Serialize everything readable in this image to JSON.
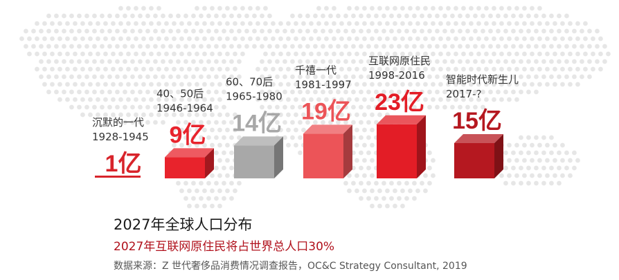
{
  "chart_data": {
    "type": "bar",
    "categories": [
      {
        "label": "沉默的一代",
        "years": "1928-1945"
      },
      {
        "label": "40、50后",
        "years": "1946-1964"
      },
      {
        "label": "60、70后",
        "years": "1965-1980"
      },
      {
        "label": "千禧一代",
        "years": "1981-1997"
      },
      {
        "label": "互联网原住民",
        "years": "1998-2016"
      },
      {
        "label": "智能时代新生儿",
        "years": "2017-?"
      }
    ],
    "values": [
      1,
      9,
      14,
      19,
      23,
      15
    ],
    "value_labels": [
      "1亿",
      "9亿",
      "14亿",
      "19亿",
      "23亿",
      "15亿"
    ],
    "colors": [
      "#d8242b",
      "#e8232c",
      "#a8a8a8",
      "#ec5458",
      "#e31d26",
      "#b51820"
    ],
    "title": "2027年全球人口分布",
    "subtitle": "2027年互联网原住民将占世界总人口30%",
    "source": "数据来源：Z 世代奢侈品消费情况调查报告，OC&C Strategy Consultant, 2019"
  }
}
